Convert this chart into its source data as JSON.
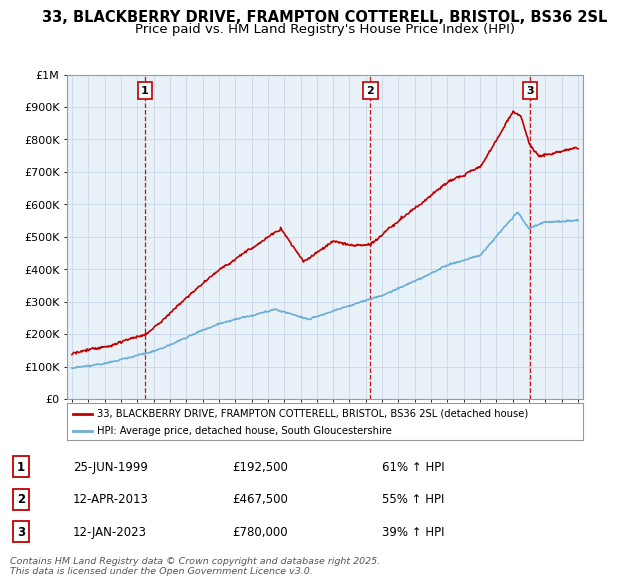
{
  "title1": "33, BLACKBERRY DRIVE, FRAMPTON COTTERELL, BRISTOL, BS36 2SL",
  "title2": "Price paid vs. HM Land Registry's House Price Index (HPI)",
  "ylim": [
    0,
    1000000
  ],
  "yticks": [
    0,
    100000,
    200000,
    300000,
    400000,
    500000,
    600000,
    700000,
    800000,
    900000,
    1000000
  ],
  "ytick_labels": [
    "£0",
    "£100K",
    "£200K",
    "£300K",
    "£400K",
    "£500K",
    "£600K",
    "£700K",
    "£800K",
    "£900K",
    "£1M"
  ],
  "xlim_start": 1994.7,
  "xlim_end": 2026.3,
  "hpi_color": "#6baed6",
  "price_color": "#c00000",
  "vline_color": "#c00000",
  "grid_color": "#c8d8e8",
  "plot_bg": "#e8f0f8",
  "legend_label_red": "33, BLACKBERRY DRIVE, FRAMPTON COTTERELL, BRISTOL, BS36 2SL (detached house)",
  "legend_label_blue": "HPI: Average price, detached house, South Gloucestershire",
  "transactions": [
    {
      "num": 1,
      "date_x": 1999.48,
      "price": 192500,
      "label": "1"
    },
    {
      "num": 2,
      "date_x": 2013.28,
      "price": 467500,
      "label": "2"
    },
    {
      "num": 3,
      "date_x": 2023.04,
      "price": 780000,
      "label": "3"
    }
  ],
  "table_rows": [
    {
      "num": "1",
      "date": "25-JUN-1999",
      "price": "£192,500",
      "hpi": "61% ↑ HPI"
    },
    {
      "num": "2",
      "date": "12-APR-2013",
      "price": "£467,500",
      "hpi": "55% ↑ HPI"
    },
    {
      "num": "3",
      "date": "12-JAN-2023",
      "price": "£780,000",
      "hpi": "39% ↑ HPI"
    }
  ],
  "footer": "Contains HM Land Registry data © Crown copyright and database right 2025.\nThis data is licensed under the Open Government Licence v3.0.",
  "title1_fontsize": 10.5,
  "title2_fontsize": 9.5
}
